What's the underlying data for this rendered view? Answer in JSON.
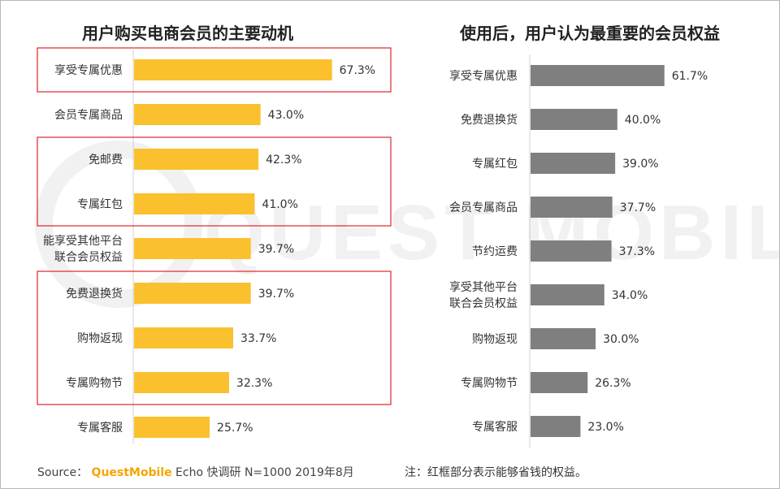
{
  "chart_data": [
    {
      "type": "bar",
      "orientation": "horizontal",
      "title": "用户购买电商会员的主要动机",
      "categories": [
        "享受专属优惠",
        "会员专属商品",
        "免邮费",
        "专属红包",
        "能享受其他平台|联合会员权益",
        "免费退换货",
        "购物返现",
        "专属购物节",
        "专属客服"
      ],
      "values": [
        67.3,
        43.0,
        42.3,
        41.0,
        39.7,
        39.7,
        33.7,
        32.3,
        25.7
      ],
      "labels": [
        "67.3%",
        "43.0%",
        "42.3%",
        "41.0%",
        "39.7%",
        "39.7%",
        "33.7%",
        "32.3%",
        "25.7%"
      ],
      "unit": "%",
      "color": "#fbc02d",
      "highlight_groups": [
        [
          0,
          0
        ],
        [
          2,
          3
        ],
        [
          5,
          7
        ]
      ],
      "highlight_color": "#e0242b"
    },
    {
      "type": "bar",
      "orientation": "horizontal",
      "title": "使用后，用户认为最重要的会员权益",
      "categories": [
        "享受专属优惠",
        "免费退换货",
        "专属红包",
        "会员专属商品",
        "节约运费",
        "享受其他平台|联合会员权益",
        "购物返现",
        "专属购物节",
        "专属客服"
      ],
      "values": [
        61.7,
        40.0,
        39.0,
        37.7,
        37.3,
        34.0,
        30.0,
        26.3,
        23.0
      ],
      "labels": [
        "61.7%",
        "40.0%",
        "39.0%",
        "37.7%",
        "37.3%",
        "34.0%",
        "30.0%",
        "26.3%",
        "23.0%"
      ],
      "unit": "%",
      "color": "#7f7f7f"
    }
  ],
  "footer": {
    "source_prefix": "Source：",
    "source_brand": "QuestMobile",
    "source_rest": " Echo 快调研 N=1000 2019年8月",
    "note": "注：红框部分表示能够省钱的权益。"
  },
  "watermark": "QUEST MOBILE"
}
